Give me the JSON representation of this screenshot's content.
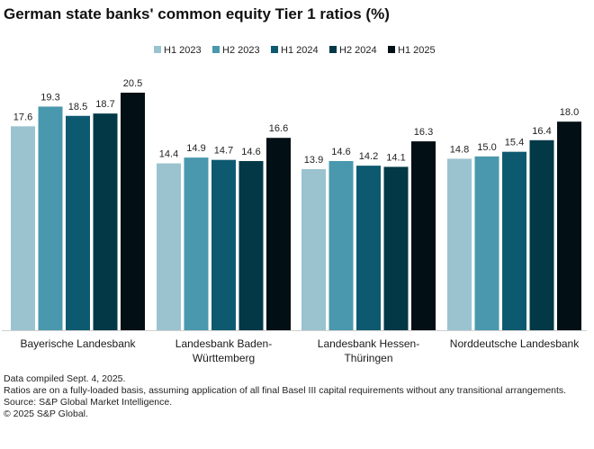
{
  "title": "German state banks' common equity Tier 1 ratios (%)",
  "chart_data": {
    "type": "bar",
    "title": "German state banks' common equity Tier 1 ratios (%)",
    "categories": [
      [
        "Bayerische Landesbank"
      ],
      [
        "Landesbank Baden-",
        "Württemberg"
      ],
      [
        "Landesbank Hessen-",
        "Thüringen"
      ],
      [
        "Norddeutsche Landesbank"
      ]
    ],
    "series": [
      {
        "name": "H1 2023",
        "color": "#9ac3cf",
        "values": [
          17.6,
          14.4,
          13.9,
          14.8
        ]
      },
      {
        "name": "H2 2023",
        "color": "#4a98ad",
        "values": [
          19.3,
          14.9,
          14.6,
          15.0
        ]
      },
      {
        "name": "H1 2024",
        "color": "#0d5a70",
        "values": [
          18.5,
          14.7,
          14.2,
          15.4
        ]
      },
      {
        "name": "H2 2024",
        "color": "#033847",
        "values": [
          18.7,
          14.6,
          14.1,
          16.4
        ]
      },
      {
        "name": "H1 2025",
        "color": "#020f14",
        "values": [
          20.5,
          16.6,
          16.3,
          18.0
        ]
      }
    ],
    "ylim": [
      0,
      20.5
    ],
    "xlabel": "",
    "ylabel": "",
    "grid": false,
    "legend": "top-center",
    "value_format": "one-decimal"
  },
  "notes": {
    "line1": "Data compiled Sept. 4, 2025.",
    "line2": "Ratios are on a fully-loaded basis, assuming application of all final Basel III capital requirements without any transitional arrangements.",
    "line3": "Source: S&P Global Market Intelligence.",
    "line4": "© 2025 S&P Global."
  }
}
